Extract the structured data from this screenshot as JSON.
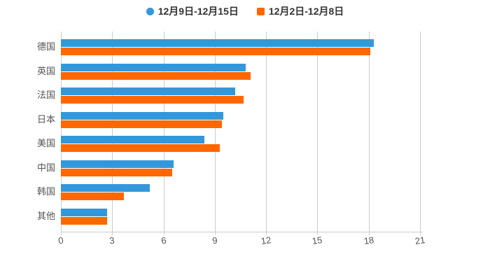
{
  "legend": {
    "items": [
      {
        "label": "12月9日-12月15日",
        "color": "#3398db",
        "marker": "circle"
      },
      {
        "label": "12月2日-12月8日",
        "color": "#ff6701",
        "marker": "square"
      }
    ]
  },
  "chart_data": {
    "type": "bar",
    "orientation": "horizontal",
    "title": "",
    "xlabel": "",
    "ylabel": "",
    "categories": [
      "德国",
      "英国",
      "法国",
      "日本",
      "美国",
      "中国",
      "韩国",
      "其他"
    ],
    "series": [
      {
        "name": "12月9日-12月15日",
        "color": "#3398db",
        "values": [
          18.3,
          10.8,
          10.2,
          9.5,
          8.4,
          6.6,
          5.2,
          2.7
        ]
      },
      {
        "name": "12月2日-12月8日",
        "color": "#ff6701",
        "values": [
          18.1,
          11.1,
          10.7,
          9.4,
          9.3,
          6.5,
          3.7,
          2.7
        ]
      }
    ],
    "xlim": [
      0,
      21
    ],
    "xticks": [
      0,
      3,
      6,
      9,
      12,
      15,
      18,
      21
    ],
    "grid": true,
    "legend_position": "top"
  },
  "colors": {
    "series1": "#3398db",
    "series2": "#ff6701",
    "gridline": "#cccccc",
    "axis_line": "#cccccc",
    "tick_label": "#555555",
    "category_label": "#555555",
    "legend_text": "#333333",
    "background": "#ffffff"
  }
}
